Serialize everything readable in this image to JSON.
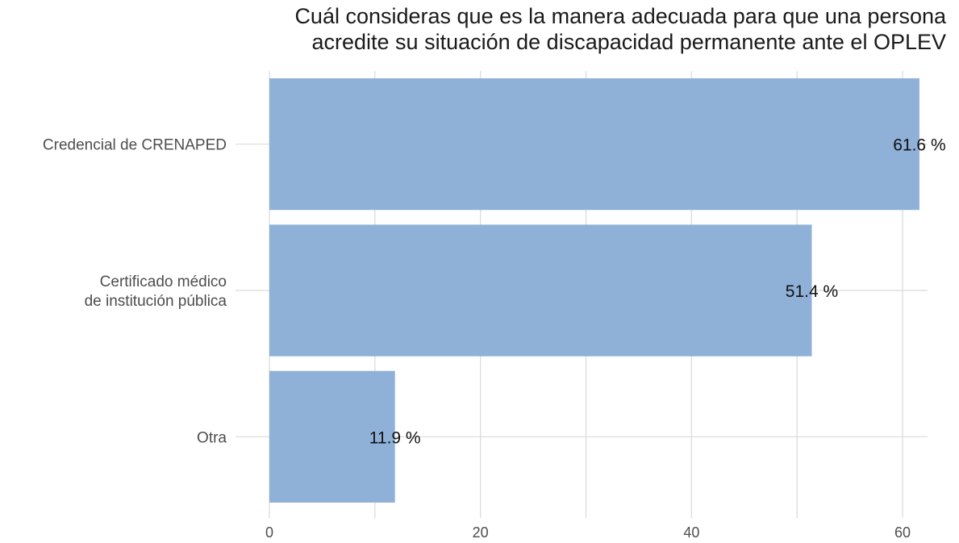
{
  "chart_data": {
    "type": "bar",
    "orientation": "horizontal",
    "title_lines": [
      "Cuál consideras que es la manera adecuada para que una persona",
      "acredite su situación de discapacidad permanente ante el OPLEV"
    ],
    "categories": [
      [
        "Credencial de CRENAPED"
      ],
      [
        "Certificado médico",
        "de institución pública"
      ],
      [
        "Otra"
      ]
    ],
    "values": [
      61.6,
      51.4,
      11.9
    ],
    "value_labels": [
      "61.6 %",
      "51.4 %",
      "11.9 %"
    ],
    "xlabel": "",
    "ylabel": "",
    "xlim": [
      0,
      65
    ],
    "xticks": [
      0,
      20,
      40,
      60
    ],
    "grid": true,
    "bar_color": "#8fb1d8",
    "grid_color": "#d9d9d9"
  }
}
